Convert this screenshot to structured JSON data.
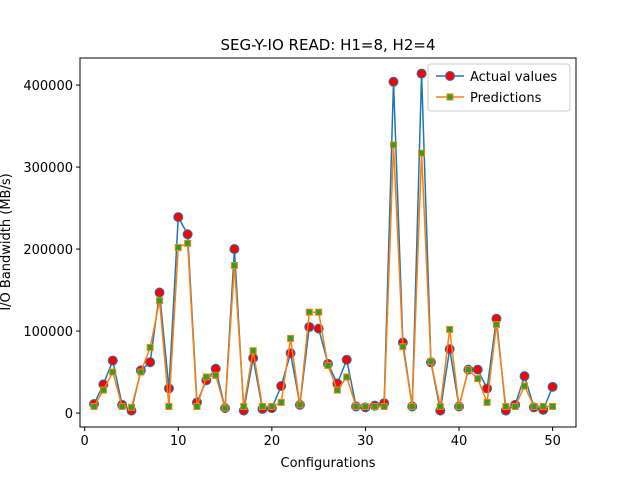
{
  "chart_data": {
    "type": "line",
    "title": "SEG-Y-IO READ: H1=8, H2=4",
    "xlabel": "Configurations",
    "ylabel": "I/O Bandwidth (MB/s)",
    "xlim": [
      -0.5,
      52.5
    ],
    "ylim": [
      -17000,
      433000
    ],
    "xticks": [
      0,
      10,
      20,
      30,
      40,
      50
    ],
    "yticks": [
      0,
      100000,
      200000,
      300000,
      400000
    ],
    "legend_position": "top-right",
    "grid": false,
    "x": [
      1,
      2,
      3,
      4,
      5,
      6,
      7,
      8,
      9,
      10,
      11,
      12,
      13,
      14,
      15,
      16,
      17,
      18,
      19,
      20,
      21,
      22,
      23,
      24,
      25,
      26,
      27,
      28,
      29,
      30,
      31,
      32,
      33,
      34,
      35,
      36,
      37,
      38,
      39,
      40,
      41,
      42,
      43,
      44,
      45,
      46,
      47,
      48,
      49,
      50
    ],
    "series": [
      {
        "name": "Actual values",
        "line_color": "#1f77b4",
        "marker": "circle",
        "marker_color": "#ff0000",
        "values": [
          11000,
          35000,
          64000,
          10000,
          3000,
          52000,
          62000,
          147000,
          30000,
          239000,
          218000,
          13000,
          40000,
          54000,
          6000,
          200000,
          3000,
          67000,
          5000,
          6000,
          33000,
          73000,
          10000,
          105000,
          103000,
          60000,
          36000,
          65000,
          8000,
          7000,
          9000,
          12000,
          404000,
          86000,
          8000,
          414000,
          62000,
          3000,
          78000,
          8000,
          53000,
          53000,
          30000,
          115000,
          3000,
          10000,
          45000,
          7000,
          4000,
          32000
        ]
      },
      {
        "name": "Predictions",
        "line_color": "#ff7f0e",
        "marker": "square",
        "marker_color": "#2ca02c",
        "values": [
          8000,
          28000,
          50000,
          8000,
          7000,
          50000,
          80000,
          137000,
          8000,
          202000,
          207000,
          8000,
          44000,
          46000,
          6000,
          180000,
          8000,
          76000,
          8000,
          8000,
          13000,
          91000,
          10000,
          123000,
          123000,
          58000,
          28000,
          44000,
          8000,
          8000,
          8000,
          8000,
          327000,
          81000,
          8000,
          317000,
          63000,
          8000,
          102000,
          8000,
          53000,
          42000,
          13000,
          108000,
          8000,
          8000,
          33000,
          8000,
          8000,
          8000
        ]
      }
    ]
  }
}
